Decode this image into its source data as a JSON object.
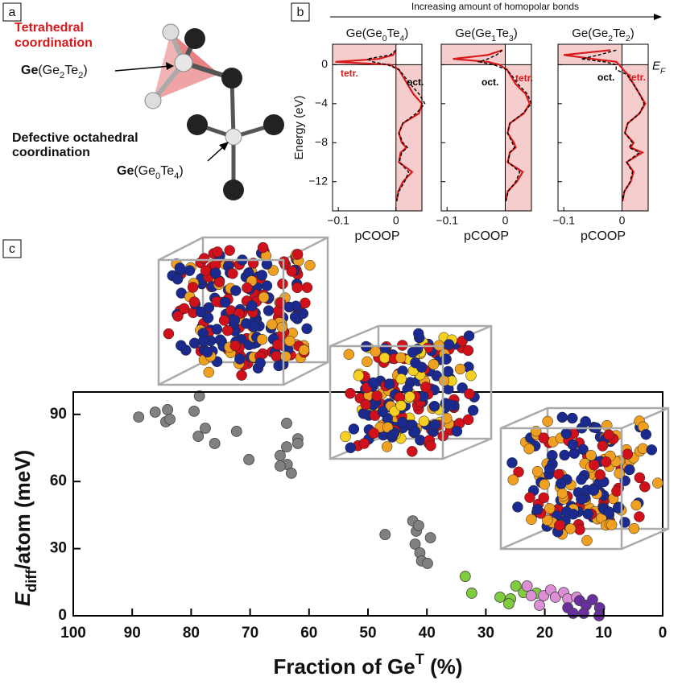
{
  "panel_labels": [
    "a",
    "b",
    "c"
  ],
  "diagram": {
    "tetrahedral_label": [
      "Tetrahedral",
      "coordination"
    ],
    "tetra_atom": [
      "Ge",
      "(Ge",
      "2",
      "Te",
      "2",
      ")"
    ],
    "octahedral_label": [
      "Defective octahedral",
      "coordination"
    ],
    "octa_atom": [
      "Ge",
      "(Ge",
      "0",
      "Te",
      "4",
      ")"
    ]
  },
  "header": "Increasing amount of homopolar bonds",
  "chart_data": [
    {
      "type": "line",
      "title": [
        "Ge(Ge",
        "0",
        "Te",
        "4",
        ")"
      ],
      "xlabel": "pCOOP",
      "ylabel": "Energy (eV)",
      "energies": [
        1.5,
        1,
        0.6,
        0.3,
        0,
        -0.5,
        -1,
        -2,
        -3,
        -4,
        -5,
        -6,
        -7,
        -8,
        -8.5,
        -9,
        -10,
        -11,
        -12,
        -13,
        -14
      ],
      "xlim": [
        -0.11,
        0.045
      ],
      "xticks": [
        {
          "value": -0.1,
          "label": "−0.1"
        },
        0
      ],
      "ylim": [
        -15,
        2.1
      ],
      "yticks": [
        0,
        {
          "value": -4,
          "label": "−4"
        },
        {
          "value": -8,
          "label": "−8"
        },
        {
          "value": -12,
          "label": "−12"
        }
      ],
      "series": [
        {
          "name": "tetr.",
          "color": "#d7191c",
          "dashed": false,
          "values": [
            0,
            -0.005,
            -0.03,
            -0.105,
            -0.01,
            0.005,
            0.01,
            0.02,
            0.03,
            0.045,
            0.04,
            0.012,
            0.005,
            0.01,
            0.018,
            0.008,
            0.005,
            0.028,
            0.012,
            0.004,
            0.001
          ]
        },
        {
          "name": "oct.",
          "color": "#000000",
          "dashed": true,
          "values": [
            0,
            -0.01,
            -0.05,
            -0.04,
            -0.015,
            0.005,
            0.012,
            0.025,
            0.04,
            0.05,
            0.035,
            0.012,
            0.005,
            0.012,
            0.02,
            0.01,
            0.006,
            0.022,
            0.015,
            0.005,
            0.001
          ]
        }
      ]
    },
    {
      "type": "line",
      "title": [
        "Ge(Ge",
        "1",
        "Te",
        "3",
        ")"
      ],
      "xlabel": "pCOOP",
      "energies": [
        1.5,
        1,
        0.6,
        0.3,
        0,
        -0.5,
        -1,
        -2,
        -3,
        -4,
        -5,
        -6,
        -7,
        -8,
        -8.5,
        -9,
        -10,
        -11,
        -12,
        -13,
        -14
      ],
      "xlim": [
        -0.11,
        0.045
      ],
      "xticks": [
        {
          "value": -0.1,
          "label": "−0.1"
        },
        0
      ],
      "ylim": [
        -15,
        2.1
      ],
      "series": [
        {
          "name": "tetr.",
          "color": "#d7191c",
          "dashed": false,
          "values": [
            -0.005,
            -0.03,
            -0.09,
            -0.03,
            -0.01,
            0.003,
            0.008,
            0.018,
            0.035,
            0.042,
            0.032,
            0.008,
            0.004,
            0.015,
            0.018,
            0.008,
            0.004,
            0.03,
            0.02,
            0.004,
            0.001
          ]
        },
        {
          "name": "oct.",
          "color": "#000000",
          "dashed": true,
          "values": [
            -0.005,
            -0.015,
            -0.03,
            -0.045,
            -0.02,
            0.002,
            0.01,
            0.022,
            0.038,
            0.045,
            0.03,
            0.008,
            0.004,
            0.012,
            0.016,
            0.008,
            0.005,
            0.025,
            0.018,
            0.005,
            0.001
          ]
        }
      ]
    },
    {
      "type": "line",
      "title": [
        "Ge(Ge",
        "2",
        "Te",
        "2",
        ")"
      ],
      "xlabel": "pCOOP",
      "fermi_label": [
        "E",
        "F"
      ],
      "energies": [
        1.5,
        1,
        0.6,
        0.3,
        0,
        -0.5,
        -1,
        -2,
        -3,
        -4,
        -5,
        -6,
        -7,
        -8,
        -8.5,
        -9,
        -10,
        -11,
        -12,
        -13,
        -14
      ],
      "xlim": [
        -0.11,
        0.045
      ],
      "xticks": [
        {
          "value": -0.1,
          "label": "−0.1"
        },
        0
      ],
      "ylim": [
        -15,
        2.1
      ],
      "series": [
        {
          "name": "tetr.",
          "color": "#d7191c",
          "dashed": false,
          "values": [
            -0.02,
            -0.1,
            -0.05,
            -0.01,
            -0.005,
            0.002,
            0.01,
            0.02,
            0.03,
            0.04,
            0.03,
            0.01,
            0.005,
            0.02,
            0.015,
            0.035,
            0.008,
            0.02,
            0.015,
            0.004,
            0.001
          ]
        },
        {
          "name": "oct.",
          "color": "#000000",
          "dashed": true,
          "values": [
            -0.01,
            -0.04,
            -0.07,
            -0.03,
            -0.01,
            -0.01,
            0.008,
            0.02,
            0.03,
            0.038,
            0.03,
            0.01,
            0.005,
            0.018,
            0.012,
            0.03,
            0.008,
            0.018,
            0.014,
            0.004,
            0.001
          ]
        }
      ]
    },
    {
      "type": "scatter",
      "xlabel": [
        "Fraction of Ge",
        "T",
        " (%)"
      ],
      "ylabel": [
        "E",
        "diff",
        "/atom  (meV)"
      ],
      "xlim": [
        100,
        0
      ],
      "xticks": [
        100,
        90,
        80,
        70,
        60,
        50,
        40,
        30,
        20,
        10,
        0
      ],
      "ylim": [
        0,
        100
      ],
      "yticks": [
        0,
        30,
        60,
        90
      ],
      "series": [
        {
          "color": "#808080",
          "x": [
            88.9,
            86.1,
            84.0,
            84.3,
            83.6,
            78.6,
            79.5,
            78.8,
            77.6,
            76.0,
            72.3,
            70.2,
            63.8,
            63.8,
            64.9,
            63.7,
            64.9,
            63.0,
            61.9,
            61.9,
            47.1,
            42.4,
            41.8,
            42.0,
            41.2,
            40.9,
            39.4,
            39.9,
            41.4
          ],
          "y": [
            88.8,
            91.0,
            92.1,
            86.7,
            87.8,
            98.2,
            91.4,
            80.2,
            83.8,
            77.0,
            82.4,
            69.8,
            86.0,
            75.5,
            71.6,
            67.6,
            66.9,
            63.7,
            79.1,
            77.0,
            36.3,
            42.4,
            37.8,
            32.0,
            28.1,
            24.5,
            34.9,
            23.4,
            40.3
          ]
        },
        {
          "color": "#7fcc3f",
          "x": [
            33.5,
            32.4,
            27.6,
            25.8,
            24.9,
            23.6,
            21.4,
            26.1
          ],
          "y": [
            17.6,
            10.1,
            8.3,
            7.6,
            13.3,
            10.4,
            10.1,
            5.4
          ]
        },
        {
          "color": "#dd8fd6",
          "x": [
            23.0,
            22.3,
            20.2,
            19.0,
            18.2,
            16.8,
            16.1,
            14.6,
            20.9
          ],
          "y": [
            13.3,
            9.0,
            9.0,
            11.5,
            8.3,
            10.4,
            7.6,
            8.3,
            4.7
          ]
        },
        {
          "color": "#6a2f9e",
          "x": [
            16.1,
            14.1,
            13.0,
            11.9,
            10.7,
            13.4,
            15.2,
            10.8
          ],
          "y": [
            3.6,
            6.8,
            4.7,
            7.2,
            3.6,
            1.1,
            1.1,
            0
          ]
        }
      ]
    }
  ]
}
